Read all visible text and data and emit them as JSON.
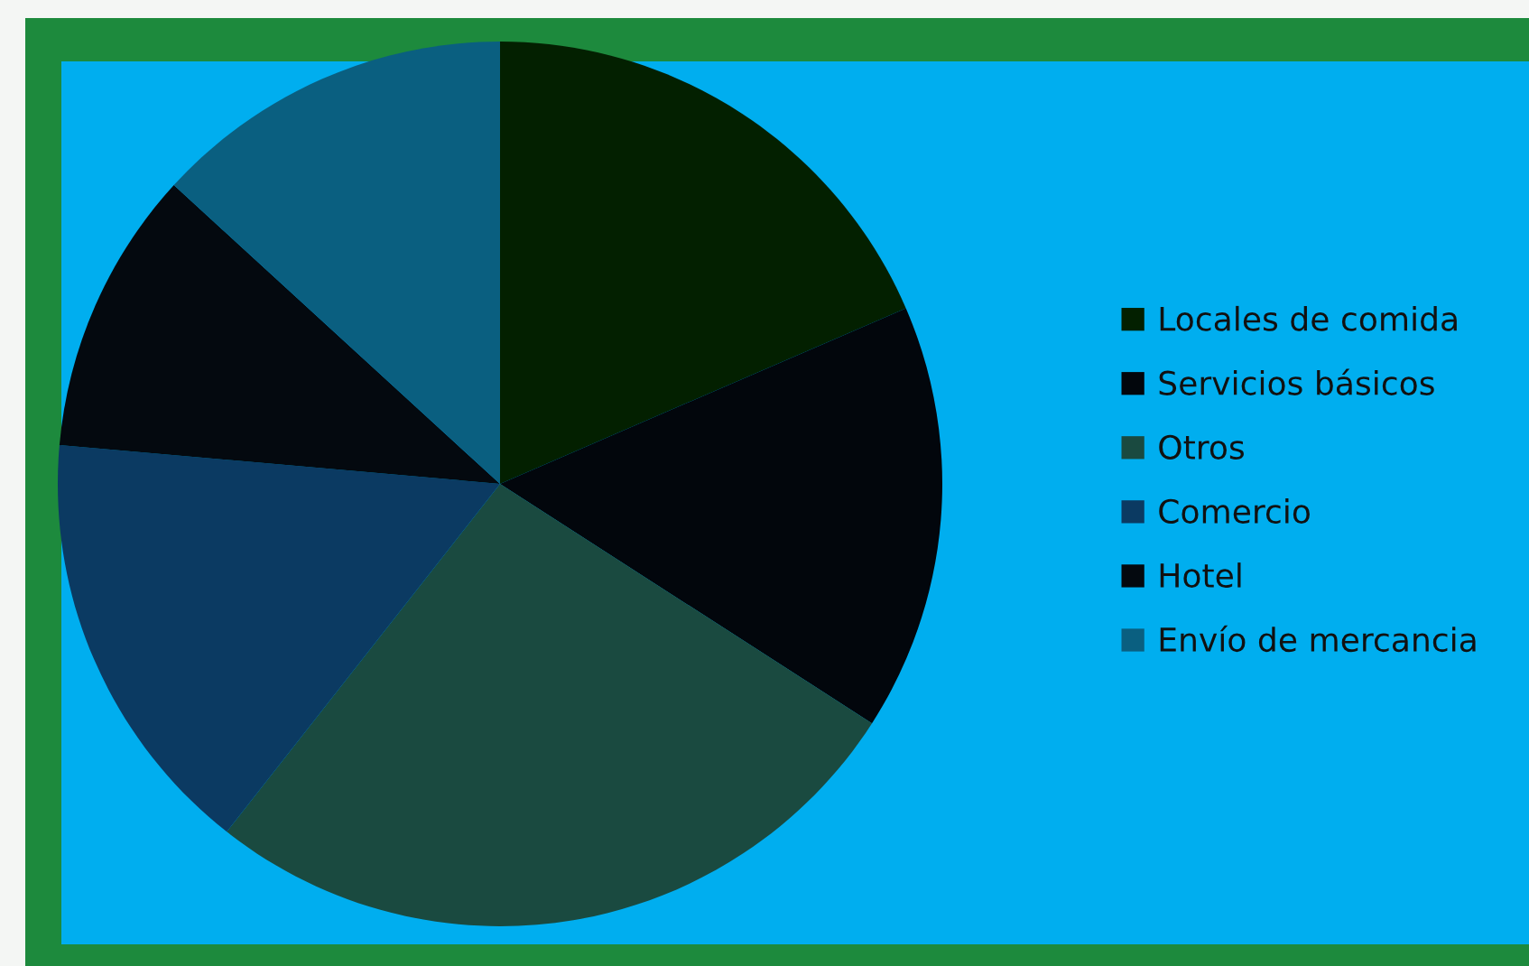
{
  "chart_data": {
    "type": "pie",
    "categories": [
      "Locales de comida",
      "Servicios básicos",
      "Otros",
      "Comercio",
      "Hotel",
      "Envío de mercancia"
    ],
    "values": [
      18.5,
      15.6,
      26.5,
      15.8,
      10.4,
      13.2
    ],
    "colors": [
      "#032000",
      "#02060c",
      "#1a4a40",
      "#0b3a62",
      "#04090f",
      "#0a5f80"
    ],
    "legend": "right"
  }
}
